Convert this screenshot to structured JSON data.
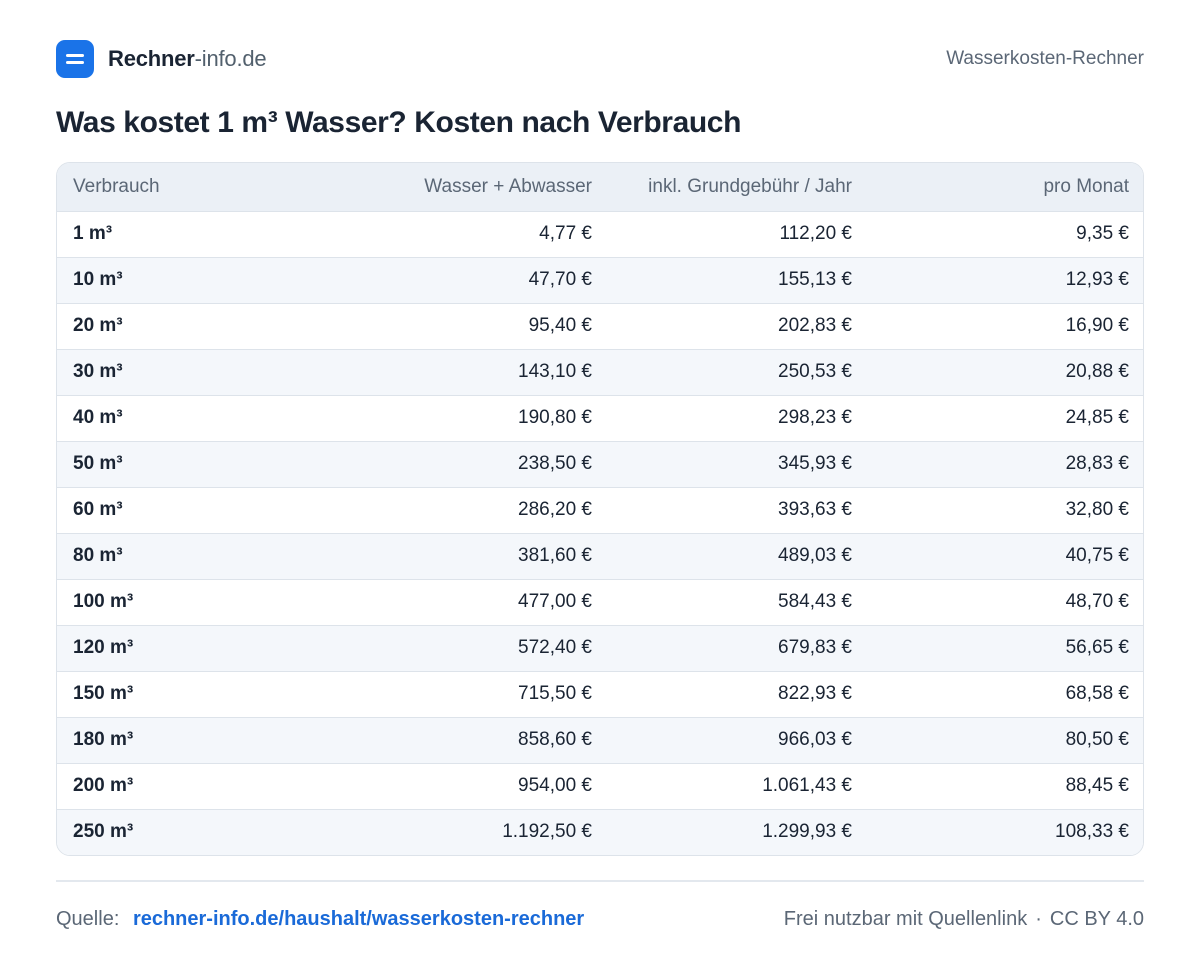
{
  "header": {
    "brand_bold": "Rechner",
    "brand_light": "-info.de",
    "page_name": "Wasserkosten-Rechner",
    "logo_icon": "menu-lines-icon",
    "accent_color": "#1a73e8"
  },
  "title": "Was kostet 1 m³ Wasser? Kosten nach Verbrauch",
  "table": {
    "columns": [
      "Verbrauch",
      "Wasser + Abwasser",
      "inkl. Grundgebühr / Jahr",
      "pro Monat"
    ],
    "rows": [
      [
        "1 m³",
        "4,77 €",
        "112,20 €",
        "9,35 €"
      ],
      [
        "10 m³",
        "47,70 €",
        "155,13 €",
        "12,93 €"
      ],
      [
        "20 m³",
        "95,40 €",
        "202,83 €",
        "16,90 €"
      ],
      [
        "30 m³",
        "143,10 €",
        "250,53 €",
        "20,88 €"
      ],
      [
        "40 m³",
        "190,80 €",
        "298,23 €",
        "24,85 €"
      ],
      [
        "50 m³",
        "238,50 €",
        "345,93 €",
        "28,83 €"
      ],
      [
        "60 m³",
        "286,20 €",
        "393,63 €",
        "32,80 €"
      ],
      [
        "80 m³",
        "381,60 €",
        "489,03 €",
        "40,75 €"
      ],
      [
        "100 m³",
        "477,00 €",
        "584,43 €",
        "48,70 €"
      ],
      [
        "120 m³",
        "572,40 €",
        "679,83 €",
        "56,65 €"
      ],
      [
        "150 m³",
        "715,50 €",
        "822,93 €",
        "68,58 €"
      ],
      [
        "180 m³",
        "858,60 €",
        "966,03 €",
        "80,50 €"
      ],
      [
        "200 m³",
        "954,00 €",
        "1.061,43 €",
        "88,45 €"
      ],
      [
        "250 m³",
        "1.192,50 €",
        "1.299,93 €",
        "108,33 €"
      ]
    ]
  },
  "footer": {
    "source_label": "Quelle:",
    "source_link": "rechner-info.de/haushalt/wasserkosten-rechner",
    "usage_note": "Frei nutzbar mit Quellenlink",
    "separator": "·",
    "license": "CC BY 4.0",
    "link_color": "#1a6ad8"
  }
}
